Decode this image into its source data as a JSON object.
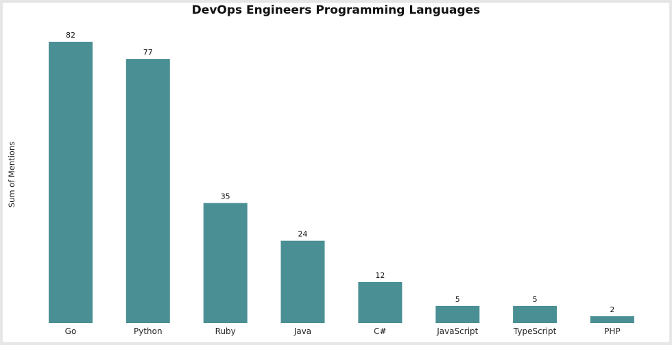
{
  "chart_data": {
    "type": "bar",
    "title": "DevOps Engineers Programming Languages",
    "xlabel": "",
    "ylabel": "Sum of Mentions",
    "categories": [
      "Go",
      "Python",
      "Ruby",
      "Java",
      "C#",
      "JavaScript",
      "TypeScript",
      "PHP"
    ],
    "values": [
      82,
      77,
      35,
      24,
      12,
      5,
      5,
      2
    ],
    "data_labels": true,
    "ylim": [
      0,
      82
    ],
    "grid": false,
    "legend": "none",
    "bar_color": "#4a8f93"
  },
  "colors": {
    "background": "#e6e6e6",
    "panel": "#ffffff",
    "bar": "#4a8f93",
    "text": "#111111"
  }
}
